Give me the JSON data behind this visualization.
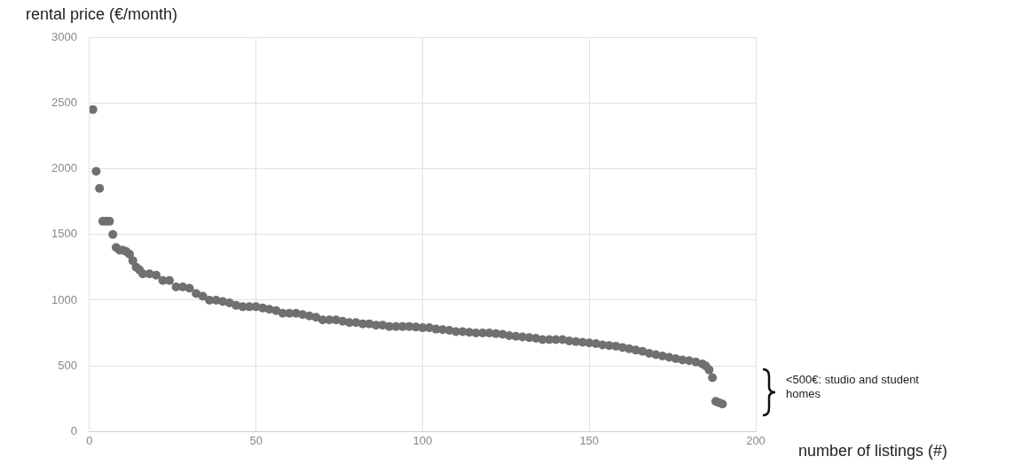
{
  "chart_data": {
    "type": "scatter",
    "ylabel": "rental price (€/month)",
    "xlabel": "number of listings (#)",
    "annotations": [
      "<500€:  studio and student homes"
    ],
    "x": [
      1,
      2,
      3,
      4,
      5,
      6,
      7,
      8,
      9,
      10,
      11,
      12,
      13,
      14,
      15,
      16,
      18,
      20,
      22,
      24,
      26,
      28,
      30,
      32,
      34,
      36,
      38,
      40,
      42,
      44,
      46,
      48,
      50,
      52,
      54,
      56,
      58,
      60,
      62,
      64,
      66,
      68,
      70,
      72,
      74,
      76,
      78,
      80,
      82,
      84,
      86,
      88,
      90,
      92,
      94,
      96,
      98,
      100,
      102,
      104,
      106,
      108,
      110,
      112,
      114,
      116,
      118,
      120,
      122,
      124,
      126,
      128,
      130,
      132,
      134,
      136,
      138,
      140,
      142,
      144,
      146,
      148,
      150,
      152,
      154,
      156,
      158,
      160,
      162,
      164,
      166,
      168,
      170,
      172,
      174,
      176,
      178,
      180,
      182,
      184,
      185,
      186,
      187,
      188,
      189,
      190
    ],
    "series": [
      {
        "color": "#707070",
        "values": [
          2450,
          1980,
          1850,
          1600,
          1600,
          1600,
          1500,
          1400,
          1380,
          1380,
          1370,
          1350,
          1300,
          1250,
          1230,
          1200,
          1200,
          1190,
          1150,
          1150,
          1100,
          1100,
          1090,
          1050,
          1030,
          1000,
          1000,
          990,
          980,
          960,
          950,
          950,
          950,
          940,
          930,
          920,
          900,
          900,
          900,
          890,
          880,
          870,
          850,
          850,
          850,
          840,
          830,
          830,
          820,
          820,
          810,
          810,
          800,
          800,
          800,
          800,
          795,
          790,
          790,
          780,
          775,
          770,
          760,
          760,
          755,
          750,
          750,
          750,
          745,
          740,
          730,
          725,
          720,
          715,
          710,
          700,
          700,
          700,
          700,
          690,
          685,
          680,
          675,
          670,
          660,
          655,
          650,
          640,
          630,
          620,
          610,
          595,
          585,
          575,
          565,
          555,
          545,
          540,
          530,
          515,
          500,
          470,
          410,
          230,
          220,
          210
        ]
      }
    ],
    "xlim": [
      0,
      200
    ],
    "xticks": [
      0,
      50,
      100,
      150,
      200
    ],
    "ylim": [
      0,
      3000
    ],
    "yticks": [
      0,
      500,
      1000,
      1500,
      2000,
      2500,
      3000
    ],
    "grid": true,
    "marker": "circle",
    "legend": false
  }
}
